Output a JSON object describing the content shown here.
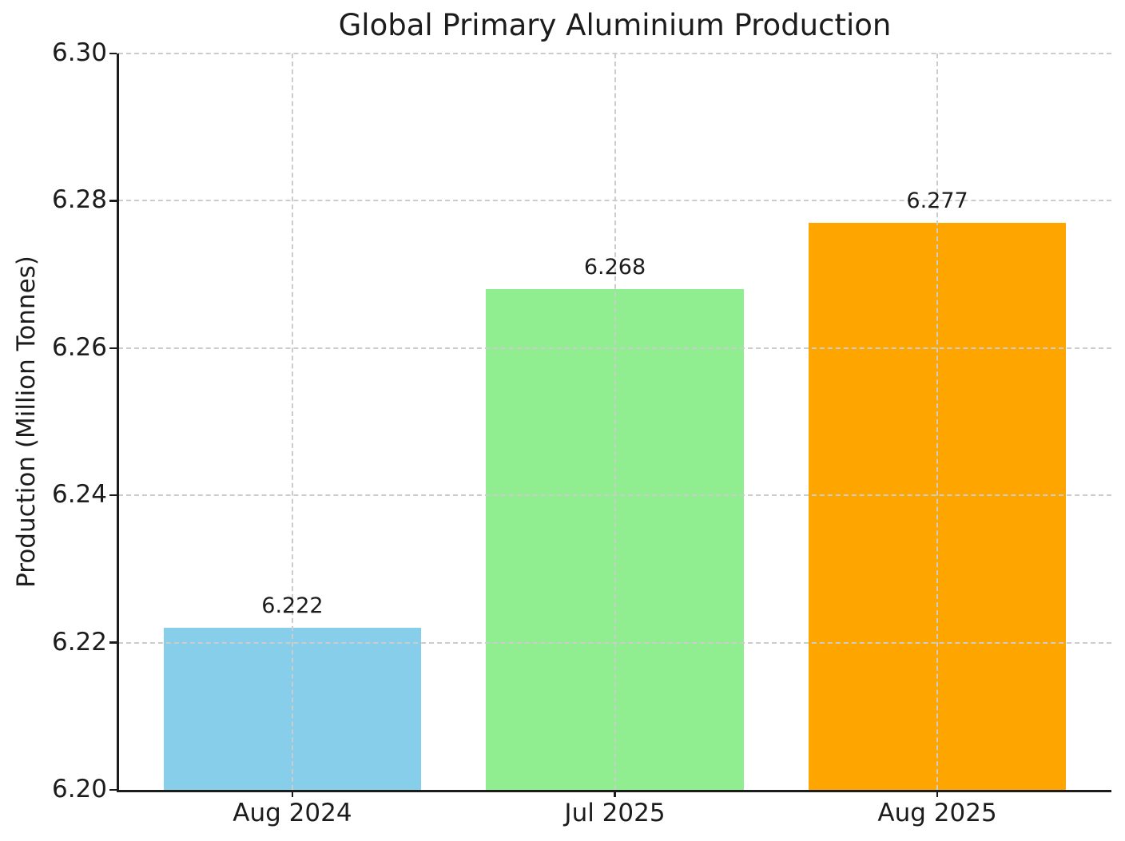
{
  "title": "Global Primary Aluminium Production",
  "chart_data": {
    "type": "bar",
    "title": "Global Primary Aluminium Production",
    "xlabel": "",
    "ylabel": "Production (Million Tonnes)",
    "categories": [
      "Aug 2024",
      "Jul 2025",
      "Aug 2025"
    ],
    "values": [
      6.222,
      6.268,
      6.277
    ],
    "bar_labels": [
      "6.222",
      "6.268",
      "6.277"
    ],
    "bar_colors": [
      "#87CEEB",
      "#90EE90",
      "#FFA500"
    ],
    "ylim": [
      6.2,
      6.3
    ],
    "yticks": [
      6.2,
      6.22,
      6.24,
      6.26,
      6.28,
      6.3
    ],
    "ytick_labels": [
      "6.20",
      "6.22",
      "6.24",
      "6.26",
      "6.28",
      "6.30"
    ],
    "grid": "dashed",
    "grid_on": true,
    "grid_color": "#cccccc",
    "legend": "none",
    "text_color": "#1c1c1c",
    "bar_width_fraction": 0.8,
    "axis_margin_units": 0.54
  }
}
